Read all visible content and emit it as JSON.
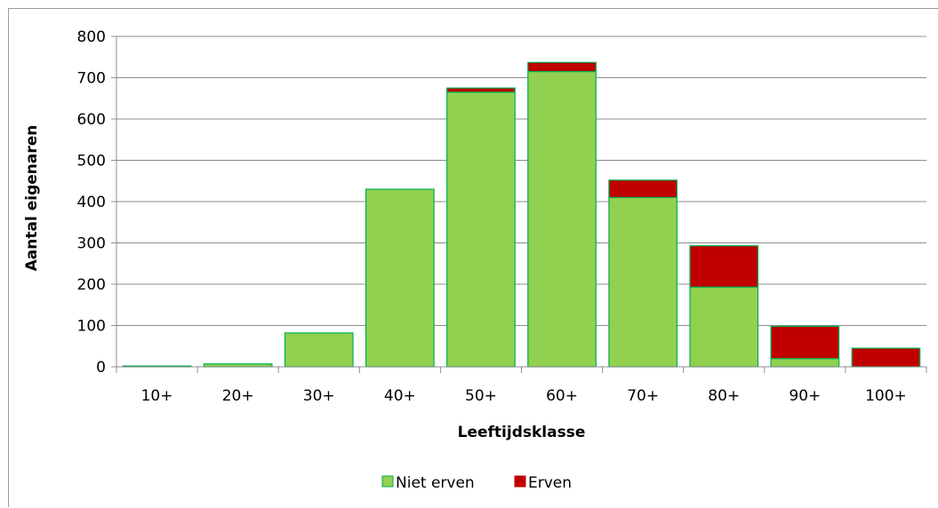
{
  "chart_data": {
    "type": "bar",
    "stacked": true,
    "categories": [
      "10+",
      "20+",
      "30+",
      "40+",
      "50+",
      "60+",
      "70+",
      "80+",
      "90+",
      "100+"
    ],
    "series": [
      {
        "name": "Niet erven",
        "color": "#92d050",
        "values": [
          2,
          7,
          82,
          430,
          665,
          715,
          410,
          193,
          20,
          0
        ]
      },
      {
        "name": "Erven",
        "color": "#c00000",
        "values": [
          0,
          0,
          0,
          0,
          10,
          22,
          42,
          100,
          78,
          45
        ]
      }
    ],
    "title": "",
    "xlabel": "Leeftijdsklasse",
    "ylabel": "Aantal eigenaren",
    "ylim": [
      0,
      800
    ],
    "yticks": [
      0,
      100,
      200,
      300,
      400,
      500,
      600,
      700,
      800
    ],
    "grid": true,
    "legend_position": "bottom",
    "bar_edge_color": "#00b050"
  }
}
